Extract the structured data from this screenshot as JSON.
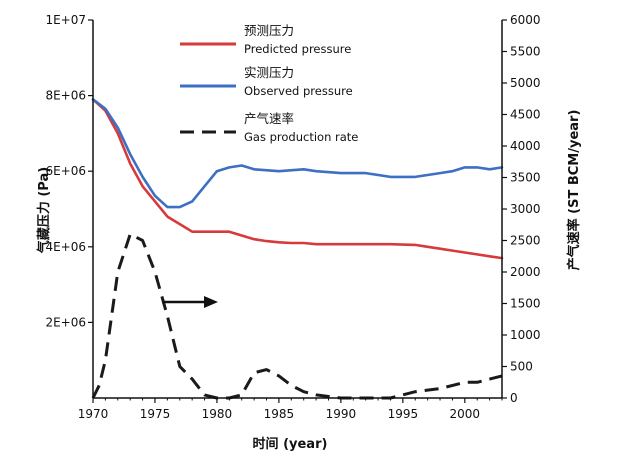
{
  "chart_data": {
    "type": "line",
    "xlabel": "时间 (year)",
    "ylabel_left": "气藏压力 (Pa)",
    "ylabel_right": "产气速率 (ST BCM/year)",
    "xlim": [
      1970,
      2003
    ],
    "ylim_left": [
      0,
      10000000
    ],
    "ylim_right": [
      0,
      6000
    ],
    "x_ticks": [
      1970,
      1975,
      1980,
      1985,
      1990,
      1995,
      2000
    ],
    "y_left_ticks": [
      {
        "value": 2000000,
        "label": "2E+06"
      },
      {
        "value": 4000000,
        "label": "4E+06"
      },
      {
        "value": 6000000,
        "label": "6E+06"
      },
      {
        "value": 8000000,
        "label": "8E+06"
      },
      {
        "value": 10000000,
        "label": "1E+07"
      }
    ],
    "y_right_ticks": [
      0,
      500,
      1000,
      1500,
      2000,
      2500,
      3000,
      3500,
      4000,
      4500,
      5000,
      5500,
      6000
    ],
    "legend": [
      {
        "zh": "预测压力",
        "en": "Predicted pressure",
        "color": "#d63a3a",
        "dash": "solid"
      },
      {
        "zh": "实测压力",
        "en": "Observed pressure",
        "color": "#3d6fc4",
        "dash": "solid"
      },
      {
        "zh": "产气速率",
        "en": "Gas production rate",
        "color": "#1a1a1a",
        "dash": "dashed"
      }
    ],
    "series": [
      {
        "name": "Predicted pressure",
        "axis": "left",
        "color": "#d63a3a",
        "x": [
          1970,
          1971,
          1972,
          1973,
          1974,
          1975,
          1976,
          1977,
          1978,
          1979,
          1980,
          1981,
          1982,
          1983,
          1984,
          1985,
          1986,
          1987,
          1988,
          1990,
          1992,
          1994,
          1996,
          1997,
          1998,
          1999,
          2000,
          2001,
          2002,
          2003
        ],
        "y": [
          7900000,
          7600000,
          7000000,
          6200000,
          5600000,
          5200000,
          4800000,
          4600000,
          4400000,
          4400000,
          4400000,
          4400000,
          4300000,
          4200000,
          4150000,
          4120000,
          4100000,
          4100000,
          4070000,
          4070000,
          4070000,
          4070000,
          4050000,
          4000000,
          3950000,
          3900000,
          3850000,
          3800000,
          3750000,
          3700000
        ]
      },
      {
        "name": "Observed pressure",
        "axis": "left",
        "color": "#3d6fc4",
        "x": [
          1970,
          1971,
          1972,
          1973,
          1974,
          1975,
          1976,
          1977,
          1978,
          1979,
          1980,
          1981,
          1982,
          1983,
          1985,
          1987,
          1988,
          1990,
          1992,
          1994,
          1996,
          1997,
          1998,
          1999,
          2000,
          2001,
          2002,
          2003
        ],
        "y": [
          7900000,
          7650000,
          7150000,
          6450000,
          5850000,
          5350000,
          5050000,
          5050000,
          5200000,
          5600000,
          6000000,
          6100000,
          6150000,
          6050000,
          6000000,
          6050000,
          6000000,
          5950000,
          5950000,
          5850000,
          5850000,
          5900000,
          5950000,
          6000000,
          6100000,
          6100000,
          6050000,
          6100000
        ]
      },
      {
        "name": "Gas production rate",
        "axis": "right",
        "color": "#1a1a1a",
        "x": [
          1970,
          1970.5,
          1971,
          1972,
          1973,
          1974,
          1975,
          1976,
          1977,
          1978,
          1979,
          1980,
          1981,
          1982,
          1983,
          1984,
          1985,
          1986,
          1987,
          1988,
          1990,
          1992,
          1994,
          1996,
          1998,
          2000,
          2001,
          2002,
          2003
        ],
        "y": [
          0,
          200,
          600,
          2000,
          2600,
          2500,
          2000,
          1300,
          500,
          300,
          50,
          0,
          0,
          50,
          400,
          450,
          350,
          200,
          100,
          50,
          0,
          0,
          0,
          100,
          150,
          250,
          250,
          300,
          350
        ]
      }
    ],
    "annotations": [
      {
        "type": "arrow",
        "direction": "right",
        "points_to": "left axis (pressure) data"
      }
    ]
  }
}
